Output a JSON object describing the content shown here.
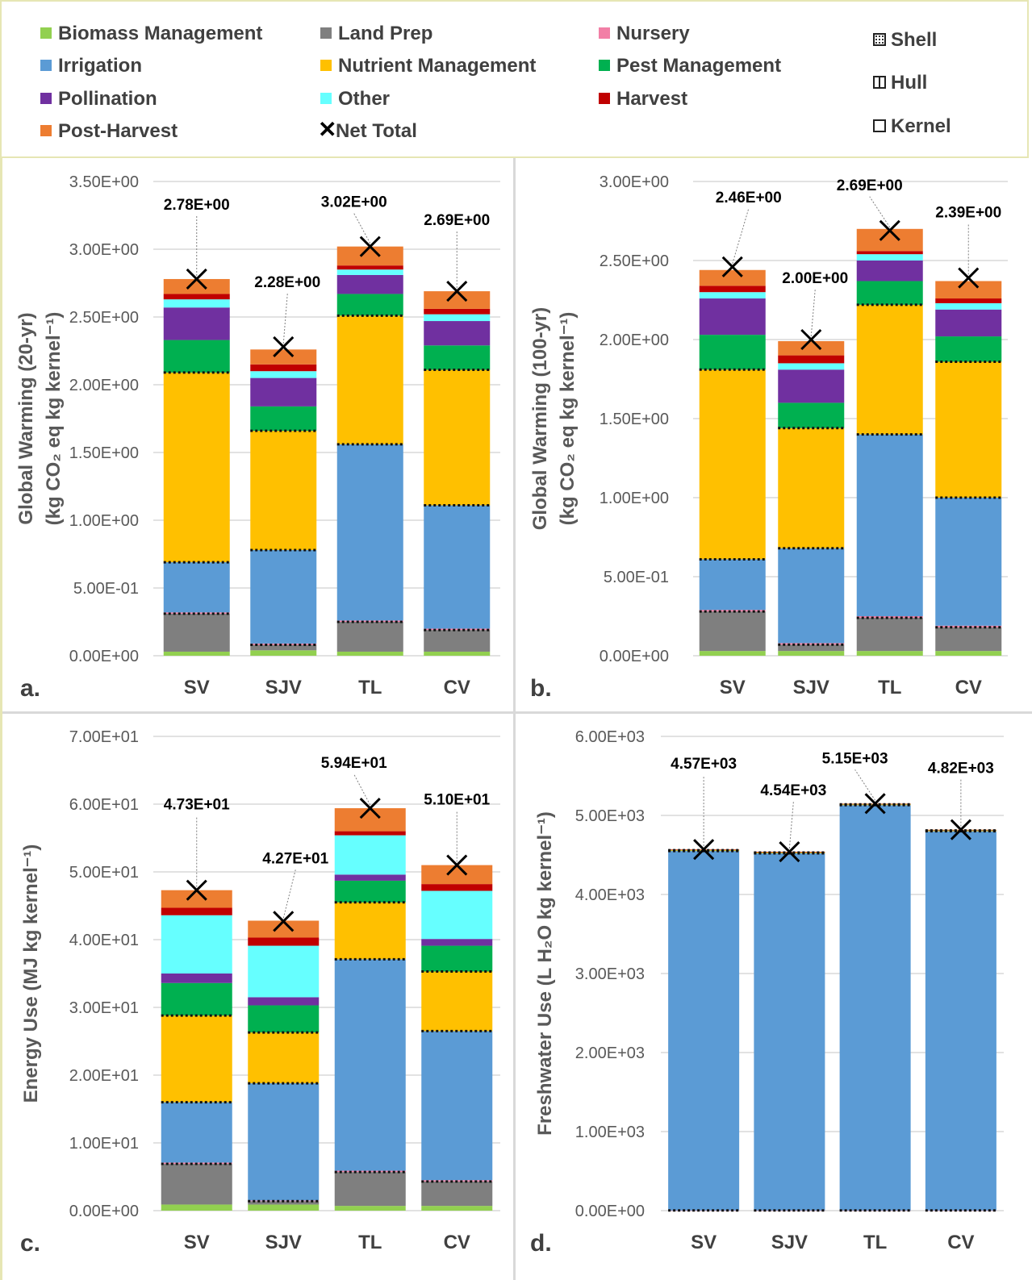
{
  "legend": {
    "items": [
      {
        "key": "biomass",
        "label": "Biomass Management",
        "color": "#92d050"
      },
      {
        "key": "landprep",
        "label": "Land Prep",
        "color": "#7f7f7f"
      },
      {
        "key": "nursery",
        "label": "Nursery",
        "color": "#f27fa6"
      },
      {
        "key": "irrigation",
        "label": "Irrigation",
        "color": "#5b9bd5"
      },
      {
        "key": "nutrient",
        "label": "Nutrient Management",
        "color": "#ffc000"
      },
      {
        "key": "pest",
        "label": "Pest Management",
        "color": "#00b050"
      },
      {
        "key": "pollination",
        "label": "Pollination",
        "color": "#7030a0"
      },
      {
        "key": "other",
        "label": "Other",
        "color": "#66ffff"
      },
      {
        "key": "harvest",
        "label": "Harvest",
        "color": "#c00000"
      },
      {
        "key": "postharvest",
        "label": "Post-Harvest",
        "color": "#ed7d31"
      }
    ],
    "net_total_label": "Net Total",
    "patterns": [
      {
        "key": "shell",
        "label": "Shell"
      },
      {
        "key": "hull",
        "label": "Hull"
      },
      {
        "key": "kernel",
        "label": "Kernel"
      }
    ]
  },
  "chart_data": [
    {
      "panel": "a.",
      "type": "bar",
      "stacked": true,
      "ylabel_line1": "Global Warming (20-yr)",
      "ylabel_line2": "(kg CO₂ eq kg kernel⁻¹)",
      "ylim": [
        0,
        3.5
      ],
      "ytick_values": [
        0,
        0.5,
        1.0,
        1.5,
        2.0,
        2.5,
        3.0,
        3.5
      ],
      "ytick_labels": [
        "0.00E+00",
        "5.00E-01",
        "1.00E+00",
        "1.50E+00",
        "2.00E+00",
        "2.50E+00",
        "3.00E+00",
        "3.50E+00"
      ],
      "categories": [
        "SV",
        "SJV",
        "TL",
        "CV"
      ],
      "series": [
        {
          "key": "biomass",
          "values": [
            0.03,
            0.04,
            0.03,
            0.03
          ]
        },
        {
          "key": "landprep",
          "values": [
            0.28,
            0.04,
            0.22,
            0.16
          ]
        },
        {
          "key": "nursery",
          "values": [
            0.01,
            0.01,
            0.01,
            0.01
          ]
        },
        {
          "key": "irrigation",
          "values": [
            0.37,
            0.69,
            1.3,
            0.91
          ]
        },
        {
          "key": "nutrient",
          "values": [
            1.4,
            0.88,
            0.95,
            1.0
          ]
        },
        {
          "key": "pest",
          "values": [
            0.24,
            0.18,
            0.16,
            0.18
          ]
        },
        {
          "key": "pollination",
          "values": [
            0.24,
            0.21,
            0.14,
            0.18
          ]
        },
        {
          "key": "other",
          "values": [
            0.06,
            0.05,
            0.04,
            0.05
          ]
        },
        {
          "key": "harvest",
          "values": [
            0.04,
            0.05,
            0.03,
            0.04
          ]
        },
        {
          "key": "postharvest",
          "values": [
            0.11,
            0.11,
            0.14,
            0.13
          ]
        }
      ],
      "net_total": [
        2.78,
        2.28,
        3.02,
        2.69
      ],
      "net_total_labels": [
        "2.78E+00",
        "2.28E+00",
        "3.02E+00",
        "2.69E+00"
      ]
    },
    {
      "panel": "b.",
      "type": "bar",
      "stacked": true,
      "ylabel_line1": "Global Warming (100-yr)",
      "ylabel_line2": "(kg CO₂ eq kg kernel⁻¹)",
      "ylim": [
        0,
        3.0
      ],
      "ytick_values": [
        0,
        0.5,
        1.0,
        1.5,
        2.0,
        2.5,
        3.0
      ],
      "ytick_labels": [
        "0.00E+00",
        "5.00E-01",
        "1.00E+00",
        "1.50E+00",
        "2.00E+00",
        "2.50E+00",
        "3.00E+00"
      ],
      "categories": [
        "SV",
        "SJV",
        "TL",
        "CV"
      ],
      "series": [
        {
          "key": "biomass",
          "values": [
            0.03,
            0.03,
            0.03,
            0.03
          ]
        },
        {
          "key": "landprep",
          "values": [
            0.25,
            0.04,
            0.21,
            0.15
          ]
        },
        {
          "key": "nursery",
          "values": [
            0.01,
            0.01,
            0.01,
            0.01
          ]
        },
        {
          "key": "irrigation",
          "values": [
            0.32,
            0.6,
            1.15,
            0.81
          ]
        },
        {
          "key": "nutrient",
          "values": [
            1.2,
            0.76,
            0.82,
            0.86
          ]
        },
        {
          "key": "pest",
          "values": [
            0.22,
            0.16,
            0.15,
            0.16
          ]
        },
        {
          "key": "pollination",
          "values": [
            0.23,
            0.21,
            0.13,
            0.17
          ]
        },
        {
          "key": "other",
          "values": [
            0.04,
            0.04,
            0.04,
            0.04
          ]
        },
        {
          "key": "harvest",
          "values": [
            0.04,
            0.05,
            0.02,
            0.03
          ]
        },
        {
          "key": "postharvest",
          "values": [
            0.1,
            0.09,
            0.14,
            0.11
          ]
        }
      ],
      "net_total": [
        2.46,
        2.0,
        2.69,
        2.39
      ],
      "net_total_labels": [
        "2.46E+00",
        "2.00E+00",
        "2.69E+00",
        "2.39E+00"
      ]
    },
    {
      "panel": "c.",
      "type": "bar",
      "stacked": true,
      "ylabel_line1": "Energy Use (MJ kg kernel⁻¹)",
      "ylabel_line2": "",
      "ylim": [
        0,
        70
      ],
      "ytick_values": [
        0,
        10,
        20,
        30,
        40,
        50,
        60,
        70
      ],
      "ytick_labels": [
        "0.00E+00",
        "1.00E+01",
        "2.00E+01",
        "3.00E+01",
        "4.00E+01",
        "5.00E+01",
        "6.00E+01",
        "7.00E+01"
      ],
      "categories": [
        "SV",
        "SJV",
        "TL",
        "CV"
      ],
      "series": [
        {
          "key": "biomass",
          "values": [
            0.9,
            0.9,
            0.7,
            0.7
          ]
        },
        {
          "key": "landprep",
          "values": [
            6.0,
            0.5,
            5.0,
            3.6
          ]
        },
        {
          "key": "nursery",
          "values": [
            0.2,
            0.1,
            0.2,
            0.2
          ]
        },
        {
          "key": "irrigation",
          "values": [
            8.9,
            17.3,
            31.2,
            22.0
          ]
        },
        {
          "key": "nutrient",
          "values": [
            12.8,
            7.5,
            8.4,
            8.8
          ]
        },
        {
          "key": "pest",
          "values": [
            4.8,
            4.0,
            3.2,
            3.8
          ]
        },
        {
          "key": "pollination",
          "values": [
            1.4,
            1.2,
            0.9,
            1.0
          ]
        },
        {
          "key": "other",
          "values": [
            8.6,
            7.6,
            5.8,
            7.1
          ]
        },
        {
          "key": "harvest",
          "values": [
            1.1,
            1.2,
            0.6,
            1.0
          ]
        },
        {
          "key": "postharvest",
          "values": [
            2.6,
            2.5,
            3.4,
            2.8
          ]
        }
      ],
      "net_total": [
        47.3,
        42.7,
        59.4,
        51.0
      ],
      "net_total_labels": [
        "4.73E+01",
        "4.27E+01",
        "5.94E+01",
        "5.10E+01"
      ]
    },
    {
      "panel": "d.",
      "type": "bar",
      "stacked": true,
      "ylabel_line1": "Freshwater Use (L H₂O kg kernel⁻¹)",
      "ylabel_line2": "",
      "ylim": [
        0,
        6000
      ],
      "ytick_values": [
        0,
        1000,
        2000,
        3000,
        4000,
        5000,
        6000
      ],
      "ytick_labels": [
        "0.00E+00",
        "1.00E+03",
        "2.00E+03",
        "3.00E+03",
        "4.00E+03",
        "5.00E+03",
        "6.00E+03"
      ],
      "categories": [
        "SV",
        "SJV",
        "TL",
        "CV"
      ],
      "series": [
        {
          "key": "biomass",
          "values": [
            0,
            0,
            0,
            0
          ]
        },
        {
          "key": "landprep",
          "values": [
            2,
            2,
            2,
            2
          ]
        },
        {
          "key": "nursery",
          "values": [
            1,
            1,
            1,
            1
          ]
        },
        {
          "key": "irrigation",
          "values": [
            4547,
            4517,
            5127,
            4797
          ]
        },
        {
          "key": "nutrient",
          "values": [
            10,
            10,
            10,
            10
          ]
        },
        {
          "key": "pest",
          "values": [
            4,
            4,
            4,
            4
          ]
        },
        {
          "key": "pollination",
          "values": [
            0,
            0,
            0,
            0
          ]
        },
        {
          "key": "other",
          "values": [
            1,
            1,
            1,
            1
          ]
        },
        {
          "key": "harvest",
          "values": [
            1,
            1,
            1,
            1
          ]
        },
        {
          "key": "postharvest",
          "values": [
            4,
            4,
            4,
            4
          ]
        }
      ],
      "net_total": [
        4570,
        4540,
        5150,
        4820
      ],
      "net_total_labels": [
        "4.57E+03",
        "4.54E+03",
        "5.15E+03",
        "4.82E+03"
      ]
    }
  ]
}
